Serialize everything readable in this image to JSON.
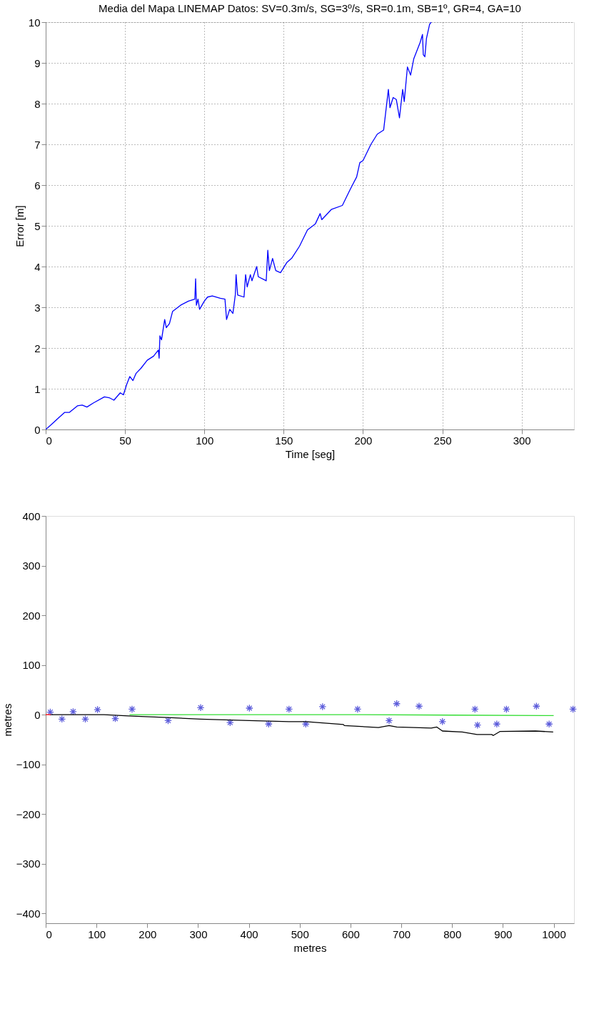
{
  "chart_data": [
    {
      "type": "line",
      "title": "Media del Mapa LINEMAP Datos: SV=0.3m/s, SG=3º/s, SR=0.1m, SB=1º, GR=4, GA=10",
      "xlabel": "Time [seg]",
      "ylabel": "Error [m]",
      "xlim": [
        0,
        333
      ],
      "ylim": [
        0,
        10
      ],
      "xticks": [
        0,
        50,
        100,
        150,
        200,
        250,
        300
      ],
      "yticks": [
        0,
        1,
        2,
        3,
        4,
        5,
        6,
        7,
        8,
        9,
        10
      ],
      "grid": true,
      "line_style": "solid",
      "marker": "none",
      "series": [
        {
          "color": "#0000ff",
          "x": [
            0,
            3,
            8,
            12,
            15,
            20,
            23,
            26,
            30,
            37,
            40,
            43,
            47,
            49,
            51,
            53,
            55,
            57,
            60,
            64,
            68,
            71,
            71.5,
            72,
            73,
            75,
            76,
            78,
            80,
            85,
            90,
            94,
            94.5,
            95,
            96,
            97,
            100,
            102,
            105,
            110,
            113,
            114,
            116,
            118,
            119.5,
            120,
            121,
            125,
            126,
            127,
            129,
            130,
            133,
            134,
            139,
            140,
            141,
            143,
            145,
            148,
            152,
            155,
            160,
            165,
            170,
            173,
            174,
            180,
            187,
            192,
            196,
            198,
            200,
            205,
            209,
            213,
            216,
            217,
            219,
            221,
            223,
            225,
            226,
            228,
            230,
            232,
            236,
            237.5,
            238,
            239,
            240,
            242,
            243
          ],
          "values": [
            0,
            0.1,
            0.28,
            0.42,
            0.42,
            0.58,
            0.6,
            0.55,
            0.65,
            0.8,
            0.78,
            0.72,
            0.9,
            0.85,
            1.1,
            1.3,
            1.2,
            1.38,
            1.5,
            1.7,
            1.8,
            1.95,
            1.75,
            2.3,
            2.2,
            2.7,
            2.5,
            2.6,
            2.9,
            3.05,
            3.15,
            3.2,
            3.7,
            3.05,
            3.2,
            2.95,
            3.15,
            3.25,
            3.28,
            3.22,
            3.2,
            2.7,
            2.95,
            2.85,
            3.3,
            3.8,
            3.3,
            3.25,
            3.8,
            3.5,
            3.8,
            3.65,
            4.0,
            3.75,
            3.65,
            4.4,
            3.9,
            4.2,
            3.9,
            3.85,
            4.1,
            4.2,
            4.5,
            4.9,
            5.05,
            5.3,
            5.15,
            5.4,
            5.5,
            5.9,
            6.2,
            6.55,
            6.6,
            7.0,
            7.25,
            7.35,
            8.35,
            7.9,
            8.15,
            8.1,
            7.65,
            8.35,
            8.05,
            8.9,
            8.7,
            9.1,
            9.5,
            9.7,
            9.2,
            9.15,
            9.6,
            9.95,
            10
          ]
        }
      ]
    },
    {
      "type": "line",
      "xlabel": "metres",
      "ylabel": "metres",
      "xlim": [
        0,
        1040
      ],
      "ylim": [
        -420,
        400
      ],
      "xticks": [
        0,
        100,
        200,
        300,
        400,
        500,
        600,
        700,
        800,
        900,
        1000
      ],
      "yticks": [
        -400,
        -300,
        -200,
        -100,
        0,
        100,
        200,
        300,
        400
      ],
      "grid": false,
      "line_style": "solid",
      "series": [
        {
          "type": "line",
          "color": "#000000",
          "x": [
            10,
            115,
            170,
            241,
            305,
            401,
            479,
            512,
            586,
            588,
            655,
            676,
            691,
            759,
            770,
            781,
            820,
            849,
            878,
            881,
            894,
            964,
            999
          ],
          "values": [
            0,
            0,
            -3,
            -6,
            -9,
            -12,
            -14,
            -14,
            -20,
            -22,
            -26,
            -22,
            -25,
            -27,
            -25,
            -33,
            -35,
            -40,
            -40,
            -42,
            -34,
            -33,
            -35
          ]
        },
        {
          "type": "line",
          "color": "#33dd33",
          "x": [
            165,
            600,
            800,
            1000
          ],
          "values": [
            0,
            0,
            -1,
            -2
          ]
        },
        {
          "type": "scatter",
          "marker": "cross",
          "color": "#1a1acc",
          "x": [
            9,
            32,
            54,
            78,
            102,
            137,
            170,
            241,
            305,
            363,
            401,
            439,
            479,
            512,
            545,
            614,
            676,
            691,
            735,
            781,
            845,
            850,
            888,
            907,
            966,
            991,
            1038
          ],
          "values": [
            5,
            -9,
            6,
            -9,
            10,
            -8,
            11,
            -12,
            14,
            -16,
            13,
            -19,
            11,
            -19,
            16,
            11,
            -12,
            22,
            17,
            -14,
            11,
            -21,
            -19,
            11,
            17,
            -19,
            11
          ]
        },
        {
          "type": "line",
          "color": "#ff0000",
          "x": [
            0,
            10
          ],
          "values": [
            0,
            0
          ]
        }
      ]
    }
  ]
}
